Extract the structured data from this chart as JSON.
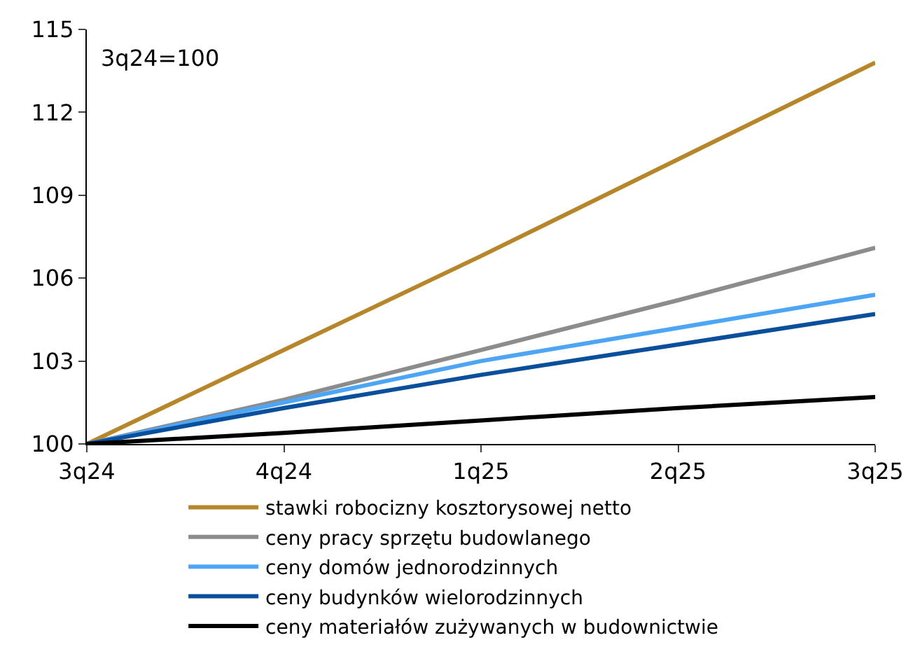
{
  "chart_data": {
    "type": "line",
    "categories": [
      "3q24",
      "4q24",
      "1q25",
      "2q25",
      "3q25"
    ],
    "series": [
      {
        "name": "stawki robocizny kosztorysowej netto",
        "color": "#b8862a",
        "values": [
          100,
          103.4,
          106.8,
          110.3,
          113.8
        ]
      },
      {
        "name": "ceny pracy sprzętu budowlanego",
        "color": "#8c8c8c",
        "values": [
          100,
          101.6,
          103.4,
          105.2,
          107.1
        ]
      },
      {
        "name": "ceny domów jednorodzinnych",
        "color": "#4da6f5",
        "values": [
          100,
          101.5,
          103.0,
          104.2,
          105.4
        ]
      },
      {
        "name": "ceny budynków wielorodzinnych",
        "color": "#0a4f9c",
        "values": [
          100,
          101.3,
          102.5,
          103.6,
          104.7
        ]
      },
      {
        "name": "ceny materiałów zużywanych w budownictwie",
        "color": "#000000",
        "values": [
          100,
          100.4,
          100.85,
          101.3,
          101.7
        ]
      }
    ],
    "ylim": [
      100,
      115
    ],
    "yticks": [
      100,
      103,
      106,
      109,
      112,
      115
    ],
    "annotations": [
      "3q24=100"
    ],
    "legend": "bottom",
    "marker": "none",
    "line_style": "solid"
  }
}
